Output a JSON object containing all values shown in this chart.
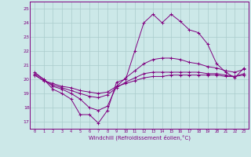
{
  "xlabel": "Windchill (Refroidissement éolien,°C)",
  "x_hours": [
    0,
    1,
    2,
    3,
    4,
    5,
    6,
    7,
    8,
    9,
    10,
    11,
    12,
    13,
    14,
    15,
    16,
    17,
    18,
    19,
    20,
    21,
    22,
    23
  ],
  "line1": [
    20.5,
    20.0,
    19.3,
    19.0,
    18.6,
    17.5,
    17.5,
    16.9,
    17.8,
    19.8,
    20.0,
    22.0,
    24.0,
    24.6,
    24.0,
    24.6,
    24.1,
    23.5,
    23.3,
    22.5,
    21.1,
    20.5,
    20.1,
    20.8
  ],
  "line2": [
    20.4,
    20.0,
    19.5,
    19.3,
    19.0,
    18.6,
    18.0,
    17.8,
    18.1,
    19.5,
    20.1,
    20.6,
    21.1,
    21.4,
    21.5,
    21.5,
    21.4,
    21.2,
    21.1,
    20.9,
    20.8,
    20.6,
    20.5,
    20.7
  ],
  "line3": [
    20.3,
    19.9,
    19.6,
    19.4,
    19.2,
    19.0,
    18.8,
    18.7,
    18.9,
    19.4,
    19.8,
    20.1,
    20.4,
    20.5,
    20.5,
    20.5,
    20.5,
    20.5,
    20.5,
    20.4,
    20.4,
    20.3,
    20.2,
    20.4
  ],
  "line4": [
    20.3,
    19.9,
    19.7,
    19.5,
    19.4,
    19.2,
    19.1,
    19.0,
    19.1,
    19.5,
    19.7,
    19.9,
    20.1,
    20.2,
    20.2,
    20.3,
    20.3,
    20.3,
    20.3,
    20.3,
    20.3,
    20.2,
    20.2,
    20.3
  ],
  "line_color": "#800080",
  "bg_color": "#cce8e8",
  "grid_color": "#aacccc",
  "ylim": [
    16.5,
    25.5
  ],
  "yticks": [
    17,
    18,
    19,
    20,
    21,
    22,
    23,
    24,
    25
  ]
}
